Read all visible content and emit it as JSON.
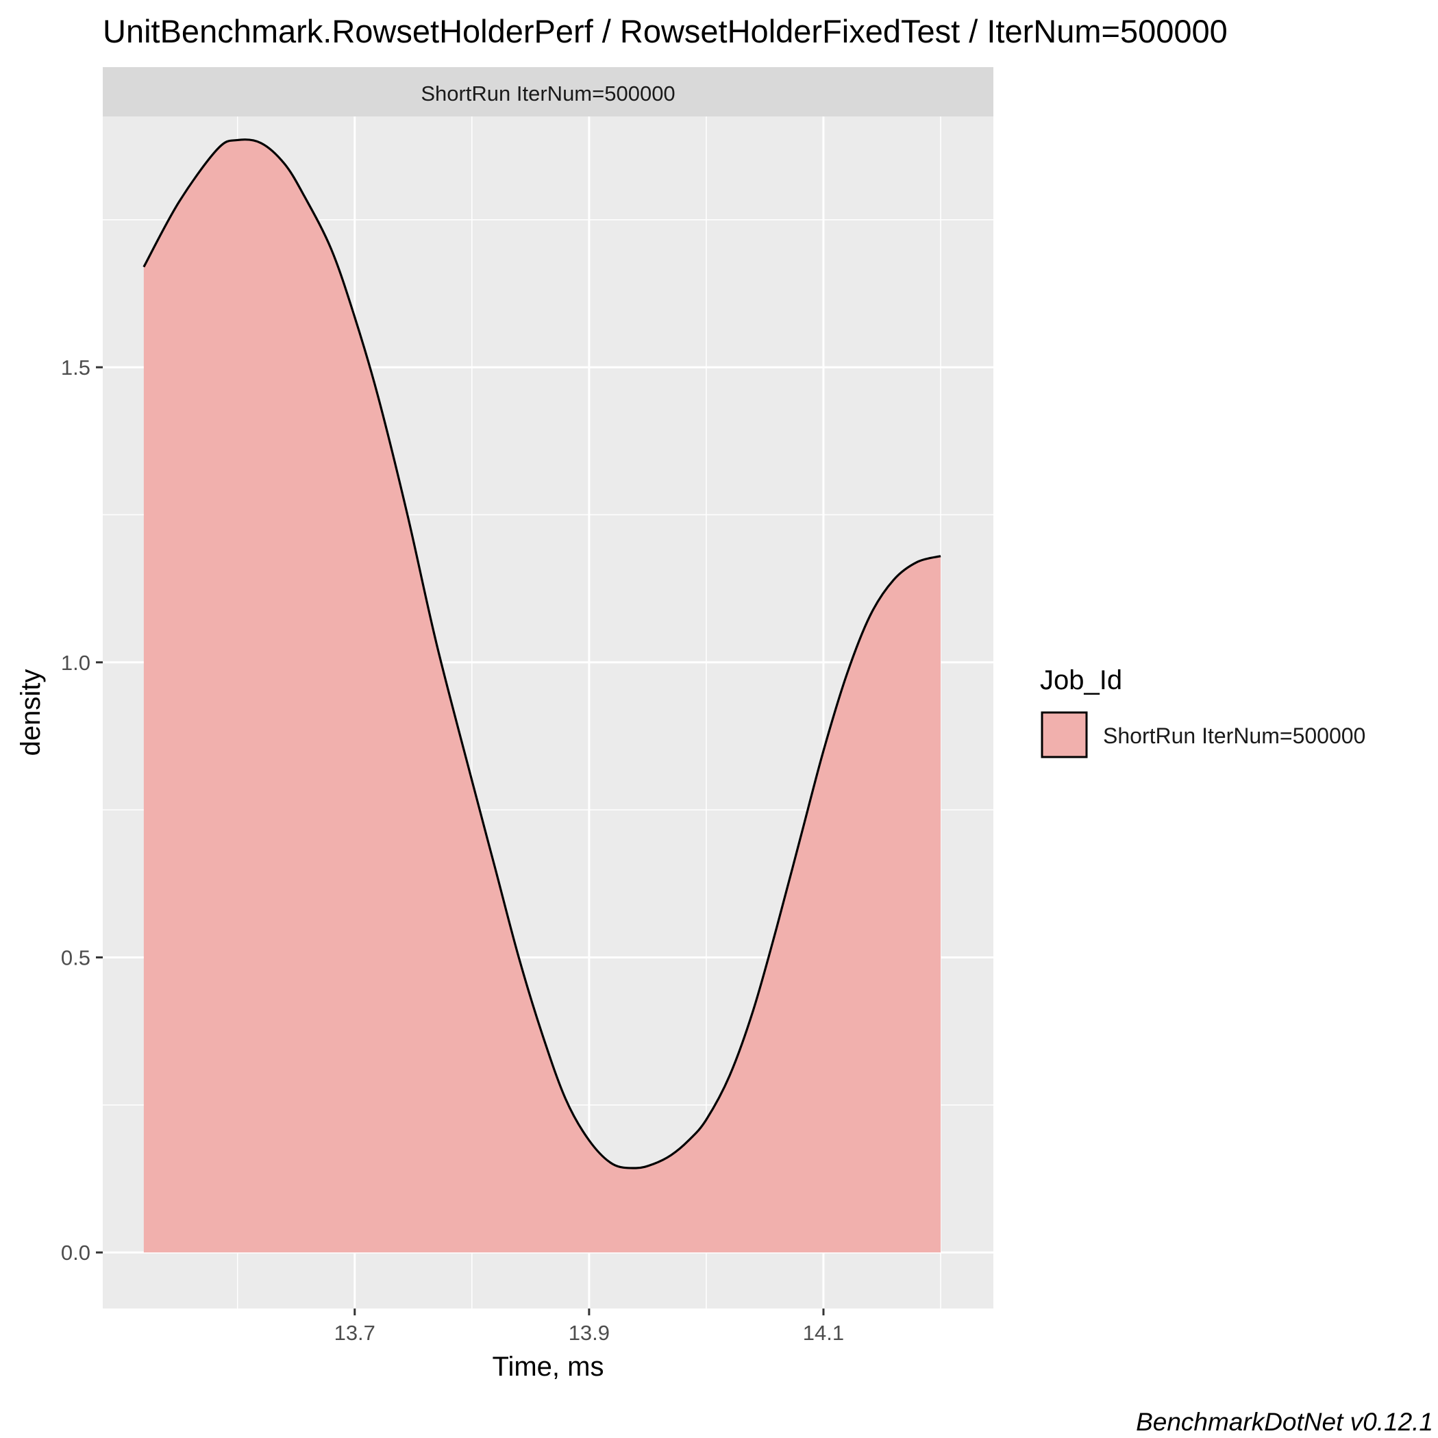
{
  "chart_data": {
    "type": "area",
    "title": "UnitBenchmark.RowsetHolderPerf / RowsetHolderFixedTest / IterNum=500000",
    "facet_label": "ShortRun IterNum=500000",
    "xlabel": "Time, ms",
    "ylabel": "density",
    "xlim": [
      13.485,
      14.245
    ],
    "ylim": [
      -0.095,
      1.925
    ],
    "x_ticks": [
      13.7,
      13.9,
      14.1
    ],
    "x_tick_labels": [
      "13.7",
      "13.9",
      "14.1"
    ],
    "y_ticks": [
      0.0,
      0.5,
      1.0,
      1.5
    ],
    "y_tick_labels": [
      "0.0",
      "0.5",
      "1.0",
      "1.5"
    ],
    "grid": true,
    "legend_position": "right",
    "legend_title": "Job_Id",
    "series": [
      {
        "name": "ShortRun IterNum=500000",
        "fill": "#f1b0ad",
        "line": "#000000",
        "x": [
          13.52,
          13.55,
          13.583,
          13.6,
          13.62,
          13.64,
          13.657,
          13.68,
          13.7,
          13.72,
          13.745,
          13.77,
          13.8,
          13.82,
          13.84,
          13.86,
          13.88,
          13.9,
          13.92,
          13.94,
          13.955,
          13.97,
          13.985,
          14.0,
          14.02,
          14.04,
          14.06,
          14.08,
          14.1,
          14.12,
          14.14,
          14.16,
          14.18,
          14.2
        ],
        "y": [
          1.67,
          1.78,
          1.87,
          1.885,
          1.88,
          1.845,
          1.79,
          1.7,
          1.585,
          1.45,
          1.25,
          1.03,
          0.8,
          0.65,
          0.5,
          0.37,
          0.26,
          0.19,
          0.15,
          0.143,
          0.15,
          0.165,
          0.19,
          0.225,
          0.3,
          0.41,
          0.55,
          0.7,
          0.85,
          0.98,
          1.08,
          1.14,
          1.17,
          1.18
        ]
      }
    ]
  },
  "footer": {
    "caption": "BenchmarkDotNet v0.12.1"
  }
}
